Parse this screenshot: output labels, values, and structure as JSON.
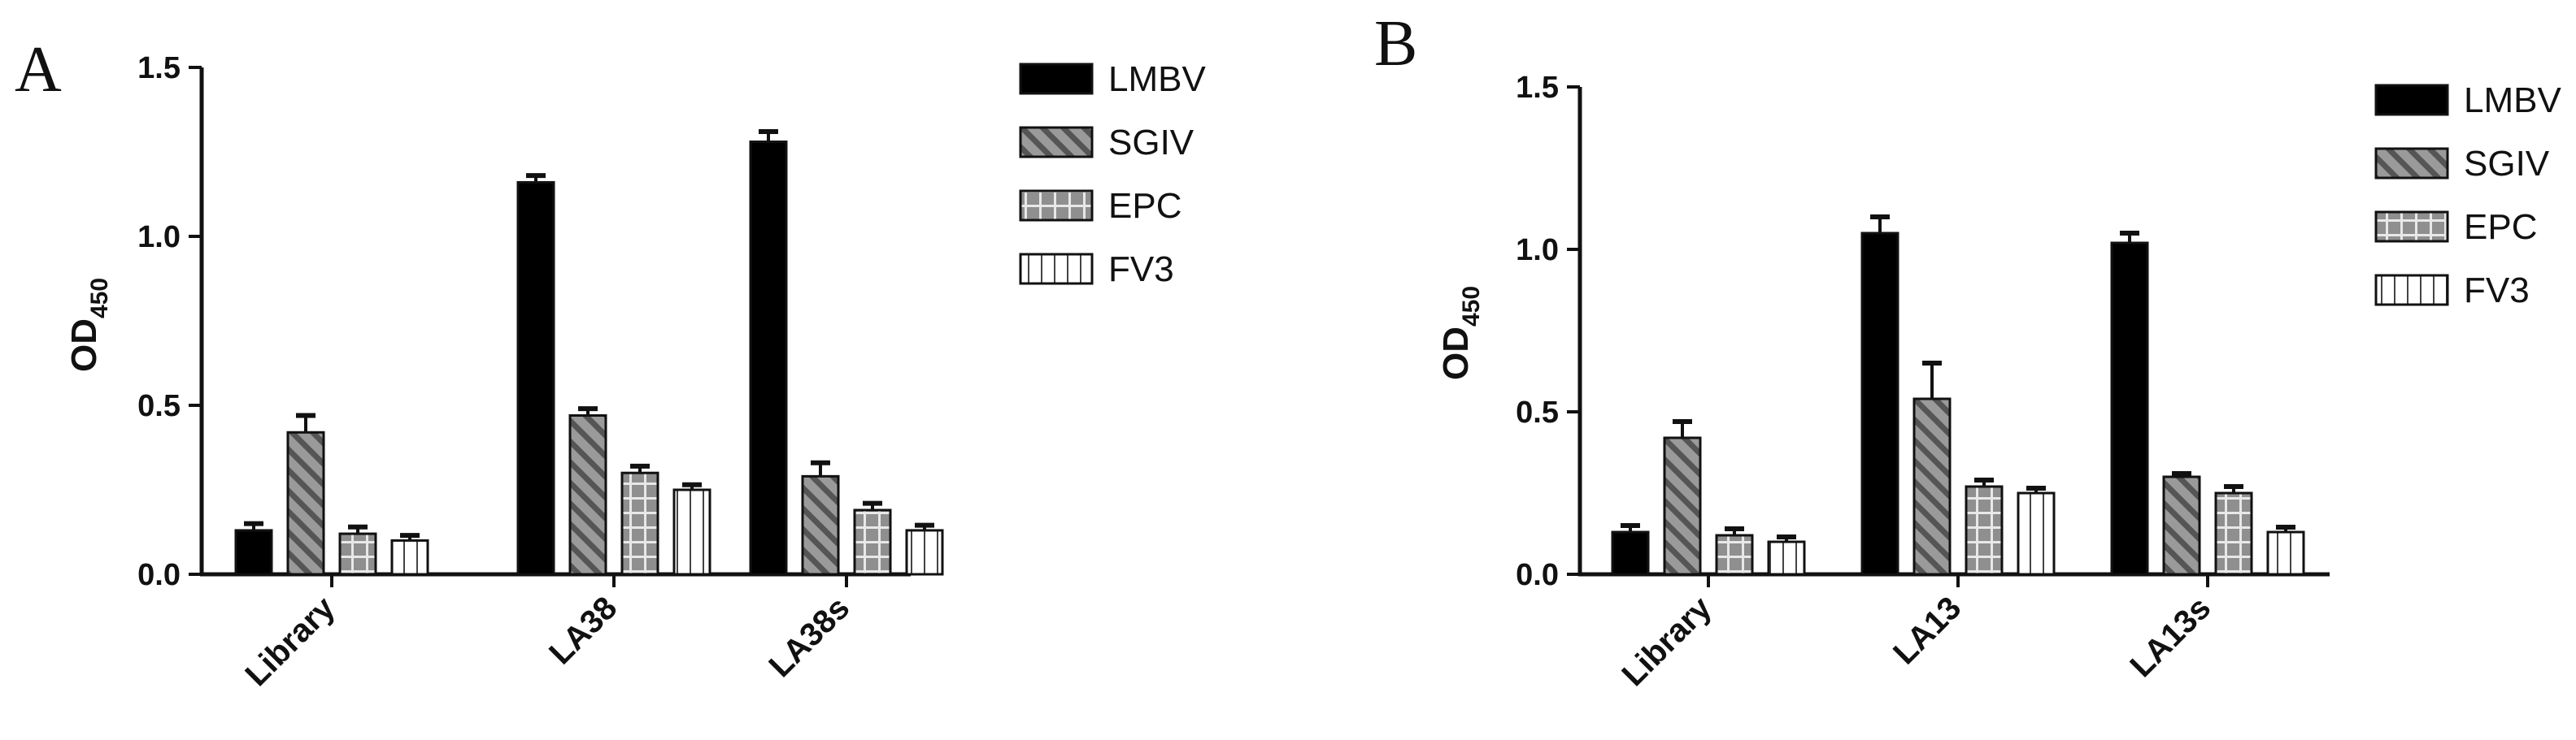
{
  "series_styles": [
    {
      "name": "LMBV",
      "fill": "#000000",
      "pattern": "solid"
    },
    {
      "name": "SGIV",
      "fill": "#8c8c8c",
      "pattern": "diagonal-stripes"
    },
    {
      "name": "EPC",
      "fill": "#9a9a9a",
      "pattern": "grid"
    },
    {
      "name": "FV3",
      "fill": "#ffffff",
      "pattern": "vertical-lines"
    }
  ],
  "chart_data": [
    {
      "panel": "A",
      "type": "bar",
      "ylabel": "OD",
      "ylabel_sub": "450",
      "ylim": [
        0,
        1.5
      ],
      "yticks": [
        "0.0",
        "0.5",
        "1.0",
        "1.5"
      ],
      "categories": [
        "Library",
        "LA38",
        "LA38s"
      ],
      "legend": [
        "LMBV",
        "SGIV",
        "EPC",
        "FV3"
      ],
      "legend_position": "right",
      "series": [
        {
          "name": "LMBV",
          "values": [
            0.13,
            1.16,
            1.28
          ],
          "errors": [
            0.02,
            0.02,
            0.03
          ]
        },
        {
          "name": "SGIV",
          "values": [
            0.42,
            0.47,
            0.29
          ],
          "errors": [
            0.05,
            0.02,
            0.04
          ]
        },
        {
          "name": "EPC",
          "values": [
            0.12,
            0.3,
            0.19
          ],
          "errors": [
            0.02,
            0.02,
            0.02
          ]
        },
        {
          "name": "FV3",
          "values": [
            0.1,
            0.25,
            0.13
          ],
          "errors": [
            0.015,
            0.015,
            0.015
          ]
        }
      ]
    },
    {
      "panel": "B",
      "type": "bar",
      "ylabel": "OD",
      "ylabel_sub": "450",
      "ylim": [
        0,
        1.5
      ],
      "yticks": [
        "0.0",
        "0.5",
        "1.0",
        "1.5"
      ],
      "categories": [
        "Library",
        "LA13",
        "LA13s"
      ],
      "legend": [
        "LMBV",
        "SGIV",
        "EPC",
        "FV3"
      ],
      "legend_position": "right",
      "series": [
        {
          "name": "LMBV",
          "values": [
            0.13,
            1.05,
            1.02
          ],
          "errors": [
            0.02,
            0.05,
            0.03
          ]
        },
        {
          "name": "SGIV",
          "values": [
            0.42,
            0.54,
            0.3
          ],
          "errors": [
            0.05,
            0.11,
            0.01
          ]
        },
        {
          "name": "EPC",
          "values": [
            0.12,
            0.27,
            0.25
          ],
          "errors": [
            0.02,
            0.02,
            0.02
          ]
        },
        {
          "name": "FV3",
          "values": [
            0.1,
            0.25,
            0.13
          ],
          "errors": [
            0.015,
            0.015,
            0.015
          ]
        }
      ]
    }
  ]
}
